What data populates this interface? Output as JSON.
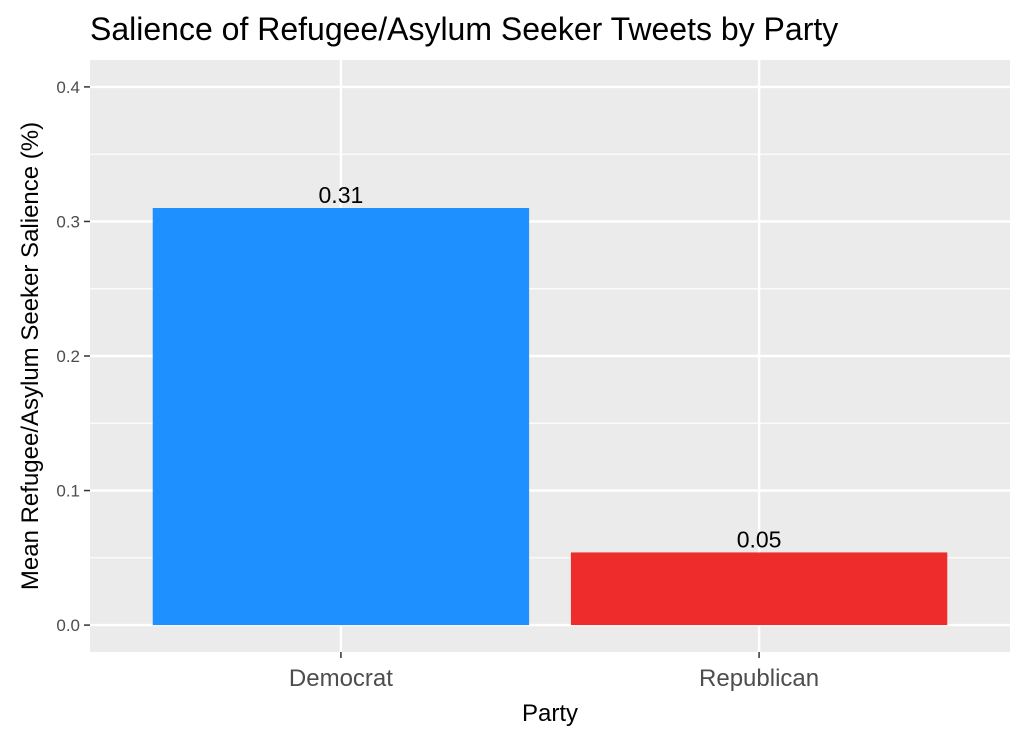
{
  "chart_data": {
    "type": "bar",
    "title": "Salience of Refugee/Asylum Seeker Tweets by Party",
    "xlabel": "Party",
    "ylabel": "Mean Refugee/Asylum Seeker Salience (%)",
    "categories": [
      "Democrat",
      "Republican"
    ],
    "values": [
      0.31,
      0.054
    ],
    "data_labels": [
      "0.31",
      "0.05"
    ],
    "bar_colors": [
      "#1e90ff",
      "#ee2c2c"
    ],
    "ylim": [
      -0.02,
      0.42
    ],
    "yticks": [
      0.0,
      0.1,
      0.2,
      0.3,
      0.4
    ],
    "ytick_labels": [
      "0.0",
      "0.1",
      "0.2",
      "0.3",
      "0.4"
    ],
    "grid": true,
    "legend": "none",
    "panel_color": "#ebebeb",
    "grid_color": "#ffffff"
  }
}
